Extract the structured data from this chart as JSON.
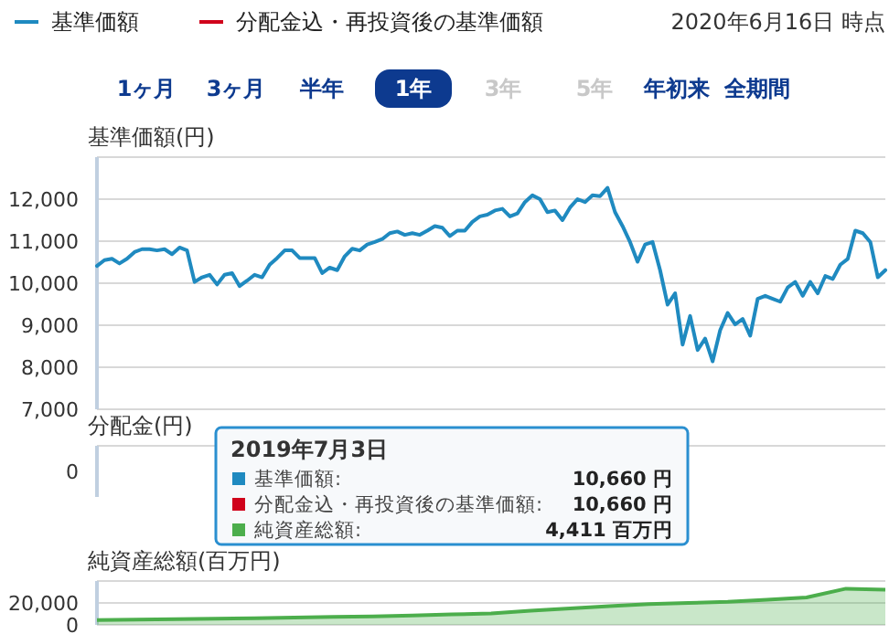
{
  "chart_data": [
    {
      "type": "other",
      "annotations": [
        "2020年6月16日 時点",
        "1ヶ月",
        "3ヶ月",
        "半年",
        "1年",
        "3年",
        "5年",
        "年初来",
        "全期間"
      ]
    },
    {
      "type": "line",
      "ylabel": "基準価額(円)",
      "legend": "top left",
      "grid": "y",
      "tick_labels": "y",
      "ylim": [
        7000,
        13000
      ],
      "yticks": [
        {
          "value": 7000,
          "label": "7,000"
        },
        {
          "value": 8000,
          "label": "8,000"
        },
        {
          "value": 9000,
          "label": "9,000"
        },
        {
          "value": 10000,
          "label": "10,000"
        },
        {
          "value": 11000,
          "label": "11,000"
        },
        {
          "value": 12000,
          "label": "12,000"
        }
      ],
      "categories": [
        null,
        null,
        null,
        null,
        null,
        null,
        null,
        null,
        null,
        null,
        null,
        null,
        null,
        null,
        null,
        null,
        null,
        null,
        null,
        null,
        null,
        null,
        null,
        null,
        null,
        null,
        null,
        null,
        null,
        null,
        null,
        null,
        null,
        null,
        null,
        null,
        null,
        null,
        null,
        null,
        null,
        null,
        null,
        null,
        null,
        null,
        null,
        null,
        null,
        null,
        null,
        null,
        null,
        null,
        null,
        null,
        null,
        null,
        null,
        null,
        null,
        null,
        null,
        null,
        null,
        null,
        null,
        null,
        null,
        null,
        null,
        null,
        null,
        null,
        null,
        null,
        null,
        null,
        null,
        null,
        null,
        null,
        null,
        null,
        null,
        null,
        null,
        null,
        null,
        null,
        null,
        null,
        null,
        null,
        null,
        null,
        null,
        null,
        null,
        null,
        null,
        null,
        null,
        null,
        null,
        null
      ],
      "series": [
        {
          "name": "基準価額",
          "color": "#1f8ac0",
          "values": [
            10410,
            10550,
            10580,
            10470,
            10580,
            10740,
            10810,
            10810,
            10780,
            10810,
            10690,
            10850,
            10780,
            10030,
            10140,
            10200,
            9970,
            10200,
            10240,
            9930,
            10060,
            10200,
            10140,
            10440,
            10600,
            10780,
            10780,
            10600,
            10600,
            10600,
            10240,
            10370,
            10310,
            10640,
            10820,
            10780,
            10920,
            10980,
            11050,
            11190,
            11230,
            11150,
            11190,
            11150,
            11250,
            11360,
            11320,
            11120,
            11250,
            11250,
            11460,
            11590,
            11630,
            11730,
            11770,
            11590,
            11660,
            11930,
            12090,
            12000,
            11690,
            11730,
            11500,
            11800,
            12000,
            11930,
            12090,
            12070,
            12270,
            11690,
            11360,
            10980,
            10510,
            10920,
            10980,
            10310,
            9490,
            9760,
            8540,
            9220,
            8410,
            8680,
            8140,
            8880,
            9290,
            9020,
            9150,
            8750,
            9630,
            9700,
            9630,
            9560,
            9900,
            10030,
            9700,
            10030,
            9760,
            10170,
            10100,
            10440,
            10580,
            11250,
            11190,
            10980,
            10140,
            10310
          ]
        },
        {
          "name": "分配金込・再投資後の基準価額",
          "color": "#d0021b",
          "values": [
            null,
            null,
            null,
            null,
            null,
            null,
            null,
            null,
            null,
            null,
            null,
            null,
            null,
            null,
            null,
            null,
            null,
            null,
            null,
            null,
            null,
            null,
            null,
            null,
            null,
            null,
            null,
            null,
            null,
            null,
            null,
            null,
            null,
            null,
            null,
            null,
            null,
            null,
            null,
            null,
            null,
            null,
            null,
            null,
            null,
            null,
            null,
            null,
            null,
            null,
            null,
            null,
            null,
            null,
            null,
            null,
            null,
            null,
            null,
            null,
            null,
            null,
            null,
            null,
            null,
            null,
            null,
            null,
            null,
            null,
            null,
            null,
            null,
            null,
            null,
            null,
            null,
            null,
            null,
            null,
            null,
            null,
            null,
            null,
            null,
            null,
            null,
            null,
            null,
            null,
            null,
            null,
            null,
            null,
            null,
            null,
            null,
            null,
            null,
            null,
            null,
            null,
            null,
            null,
            null,
            null
          ]
        }
      ]
    },
    {
      "type": "other",
      "title": "分配金(円)",
      "annotations": [
        "0"
      ]
    },
    {
      "type": "area",
      "ylabel": "純資産総額(百万円)",
      "color": "#4cae4c",
      "grid": "y",
      "tick_labels": "y",
      "ylim": [
        0,
        40000
      ],
      "yticks": [
        0,
        {
          "value": 20000,
          "label": "20,000"
        }
      ],
      "categories": [
        null,
        null,
        null,
        null,
        null,
        null,
        null,
        null,
        null,
        null,
        null,
        null,
        null,
        null,
        null,
        null,
        null,
        null,
        null,
        null,
        null
      ],
      "values": [
        4411,
        4800,
        5200,
        5600,
        6000,
        6600,
        7200,
        7800,
        8500,
        9500,
        10500,
        13000,
        15000,
        17000,
        19000,
        20000,
        21000,
        23000,
        25000,
        33000,
        32000
      ]
    },
    {
      "type": "other",
      "annotations": [
        "2019年7月3日",
        "基準価額:",
        "10,660 円",
        "分配金込・再投資後の基準価額:",
        "10,660 円",
        "純資産総額:",
        "4,411 百万円"
      ]
    }
  ]
}
